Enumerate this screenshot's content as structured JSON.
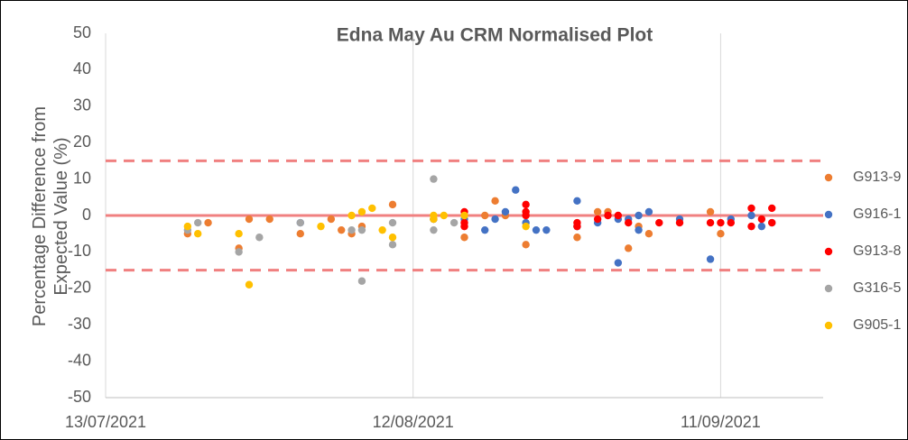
{
  "chart_data": {
    "type": "scatter",
    "title": "Edna May Au CRM Normalised Plot",
    "y_label": "Percentage Difference from Expected Value (%)",
    "xlim": [
      "2021-07-13",
      "2021-09-21"
    ],
    "xticks": [
      {
        "value": "2021-07-13",
        "label": "13/07/2021"
      },
      {
        "value": "2021-08-12",
        "label": "12/08/2021"
      },
      {
        "value": "2021-09-11",
        "label": "11/09/2021"
      }
    ],
    "ylim": [
      -50,
      50
    ],
    "yticks": [
      -50,
      -40,
      -30,
      -20,
      -10,
      0,
      10,
      20,
      30,
      40,
      50
    ],
    "reference_lines": [
      {
        "value": 15,
        "style": "dashed"
      },
      {
        "value": 0,
        "style": "solid"
      },
      {
        "value": -15,
        "style": "dashed"
      }
    ],
    "reference_color": "#f08080",
    "grid": "x",
    "legend": "right",
    "series": [
      {
        "name": "G913-9",
        "color": "#ed7d31",
        "x": [
          "2021-07-21",
          "2021-07-23",
          "2021-07-26",
          "2021-07-27",
          "2021-07-29",
          "2021-08-01",
          "2021-08-04",
          "2021-08-05",
          "2021-08-06",
          "2021-08-07",
          "2021-08-10",
          "2021-08-14",
          "2021-08-17",
          "2021-08-19",
          "2021-08-20",
          "2021-08-21",
          "2021-08-23",
          "2021-08-28",
          "2021-08-30",
          "2021-08-31",
          "2021-09-02",
          "2021-09-03",
          "2021-09-04",
          "2021-09-10",
          "2021-09-11"
        ],
        "values": [
          -5,
          -2,
          -9,
          -1,
          -1,
          -5,
          -1,
          -4,
          -5,
          -3,
          3,
          -1,
          -6,
          0,
          4,
          0,
          -8,
          -6,
          1,
          1,
          -9,
          -3,
          -5,
          1,
          -5
        ]
      },
      {
        "name": "G916-1",
        "color": "#4472c4",
        "x": [
          "2021-08-01",
          "2021-08-14",
          "2021-08-17",
          "2021-08-19",
          "2021-08-20",
          "2021-08-21",
          "2021-08-22",
          "2021-08-23",
          "2021-08-24",
          "2021-08-25",
          "2021-08-28",
          "2021-08-28",
          "2021-08-30",
          "2021-09-01",
          "2021-09-01",
          "2021-09-02",
          "2021-09-03",
          "2021-09-03",
          "2021-09-04",
          "2021-09-07",
          "2021-09-10",
          "2021-09-12",
          "2021-09-14",
          "2021-09-15",
          "2021-09-16"
        ],
        "values": [
          -2,
          -1,
          -1,
          -4,
          -1,
          1,
          7,
          -2,
          -4,
          -4,
          4,
          -3,
          -2,
          -13,
          -1,
          -1,
          -4,
          0,
          1,
          -1,
          -12,
          -1,
          0,
          -3,
          -2
        ]
      },
      {
        "name": "G913-8",
        "color": "#ff0000",
        "x": [
          "2021-08-17",
          "2021-08-17",
          "2021-08-17",
          "2021-08-23",
          "2021-08-23",
          "2021-08-23",
          "2021-08-28",
          "2021-08-28",
          "2021-08-30",
          "2021-08-31",
          "2021-09-01",
          "2021-09-02",
          "2021-09-05",
          "2021-09-07",
          "2021-09-10",
          "2021-09-11",
          "2021-09-12",
          "2021-09-14",
          "2021-09-14",
          "2021-09-15",
          "2021-09-16",
          "2021-09-16"
        ],
        "values": [
          1,
          -3,
          -2,
          3,
          1,
          0,
          -2,
          -3,
          -1,
          0,
          0,
          -2,
          -2,
          -2,
          -2,
          -2,
          -2,
          2,
          -3,
          -1,
          2,
          -2
        ]
      },
      {
        "name": "G316-5",
        "color": "#a5a5a5",
        "x": [
          "2021-07-21",
          "2021-07-22",
          "2021-07-26",
          "2021-07-28",
          "2021-08-01",
          "2021-08-06",
          "2021-08-07",
          "2021-08-07",
          "2021-08-10",
          "2021-08-10",
          "2021-08-14",
          "2021-08-14",
          "2021-08-16"
        ],
        "values": [
          -4,
          -2,
          -10,
          -6,
          -2,
          -4,
          -18,
          -4,
          -8,
          -2,
          10,
          -4,
          -2
        ]
      },
      {
        "name": "G905-1",
        "color": "#ffc000",
        "x": [
          "2021-07-21",
          "2021-07-22",
          "2021-07-26",
          "2021-07-27",
          "2021-08-03",
          "2021-08-06",
          "2021-08-07",
          "2021-08-08",
          "2021-08-09",
          "2021-08-10",
          "2021-08-14",
          "2021-08-14",
          "2021-08-15",
          "2021-08-17",
          "2021-08-23"
        ],
        "values": [
          -3,
          -5,
          -5,
          -19,
          -3,
          0,
          1,
          2,
          -4,
          -6,
          0,
          -1,
          0,
          0,
          -3
        ]
      }
    ]
  }
}
